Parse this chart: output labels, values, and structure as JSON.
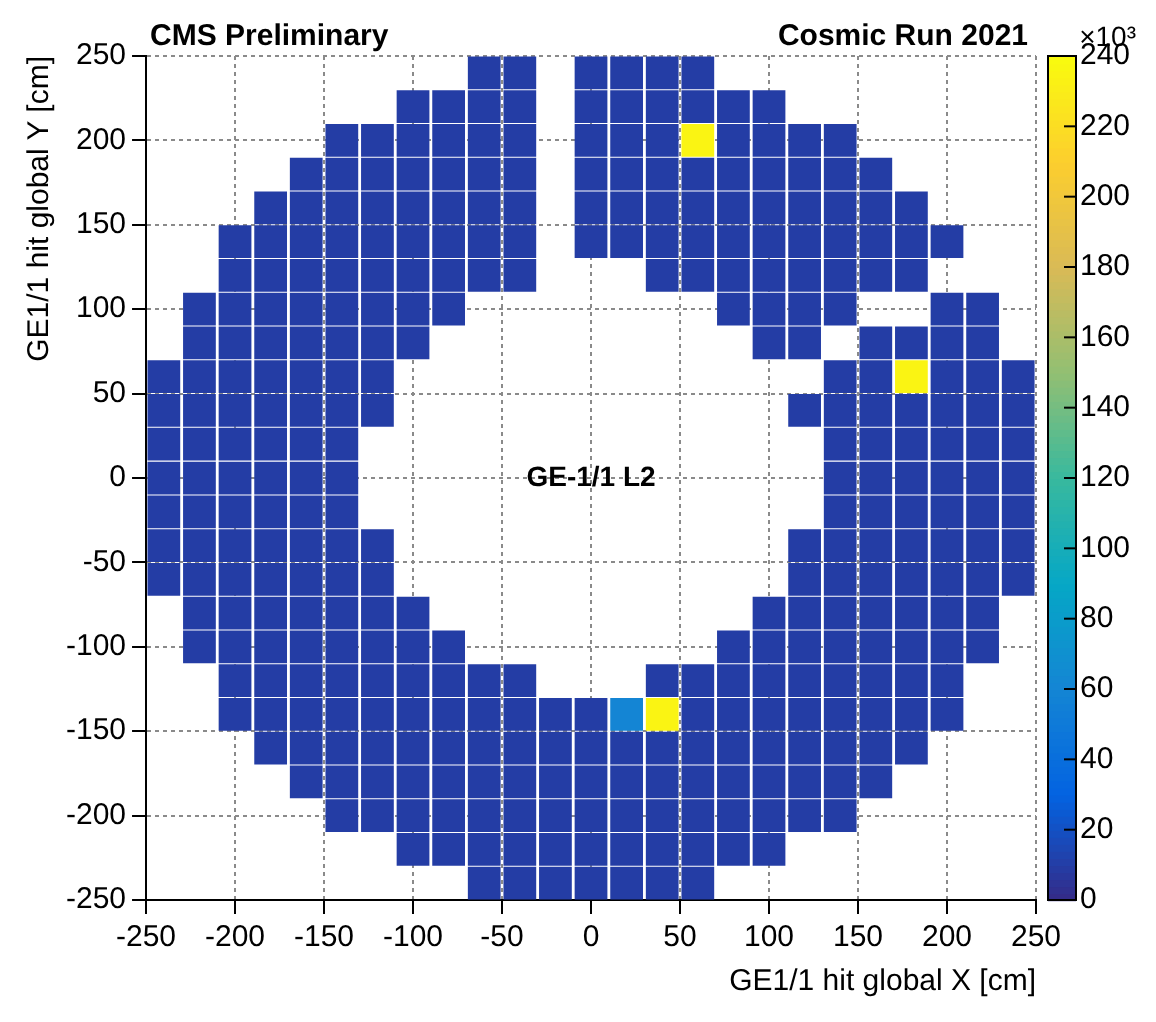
{
  "chart_data": {
    "type": "scatter",
    "title": "CMS Preliminary",
    "subtitle": "Cosmic Run 2021",
    "xlabel": "GE1/1 hit global X [cm]",
    "ylabel": "GE1/1 hit global Y [cm]",
    "clabel": "×10³",
    "annotations": [
      "GE-1/1 L2"
    ],
    "marker": "square",
    "grid": true,
    "legend": false,
    "xlim": [
      -250,
      250
    ],
    "xticks": [
      -250,
      -200,
      -150,
      -100,
      -50,
      0,
      50,
      100,
      150,
      200,
      250
    ],
    "ylim": [
      -250,
      250
    ],
    "yticks": [
      -250,
      -200,
      -150,
      -100,
      -50,
      0,
      50,
      100,
      150,
      200,
      250
    ],
    "clim": [
      0,
      240
    ],
    "cticks": [
      0,
      20,
      40,
      60,
      80,
      100,
      120,
      140,
      160,
      180,
      200,
      220,
      240
    ],
    "x": [
      -60,
      -40,
      0,
      20,
      40,
      60,
      -100,
      -80,
      -60,
      -40,
      0,
      20,
      40,
      60,
      80,
      100,
      -140,
      -120,
      -100,
      -80,
      -60,
      -40,
      0,
      20,
      40,
      60,
      80,
      100,
      120,
      140,
      -160,
      -140,
      -120,
      -100,
      -80,
      -60,
      -40,
      0,
      20,
      40,
      60,
      80,
      100,
      120,
      140,
      160,
      -180,
      -160,
      -140,
      -120,
      -100,
      -80,
      -60,
      -40,
      0,
      20,
      40,
      60,
      80,
      100,
      120,
      140,
      160,
      180,
      -200,
      -180,
      -160,
      -140,
      -120,
      -100,
      -80,
      -60,
      -40,
      0,
      20,
      40,
      60,
      80,
      100,
      120,
      140,
      160,
      180,
      200,
      -200,
      -180,
      -160,
      -140,
      -120,
      -100,
      -80,
      -60,
      -40,
      40,
      60,
      80,
      100,
      120,
      140,
      160,
      180,
      -220,
      -200,
      -180,
      -160,
      -140,
      -120,
      -100,
      -80,
      80,
      100,
      120,
      140,
      200,
      220,
      -220,
      -200,
      -180,
      -160,
      -140,
      -120,
      -100,
      100,
      120,
      160,
      180,
      200,
      220,
      -240,
      -220,
      -200,
      -180,
      -160,
      -140,
      -120,
      140,
      160,
      180,
      200,
      220,
      240,
      -240,
      -220,
      -200,
      -180,
      -160,
      -140,
      -120,
      120,
      140,
      160,
      180,
      200,
      220,
      240,
      -240,
      -220,
      -200,
      -180,
      -160,
      -140,
      140,
      160,
      180,
      200,
      220,
      240,
      -240,
      -220,
      -200,
      -180,
      -160,
      -140,
      140,
      160,
      180,
      200,
      220,
      240,
      -240,
      -220,
      -200,
      -180,
      -160,
      -140,
      140,
      160,
      180,
      200,
      220,
      240,
      -240,
      -220,
      -200,
      -180,
      -160,
      -140,
      -120,
      120,
      140,
      160,
      180,
      200,
      220,
      240,
      -240,
      -220,
      -200,
      -180,
      -160,
      -140,
      -120,
      120,
      140,
      160,
      180,
      200,
      220,
      240,
      -220,
      -200,
      -180,
      -160,
      -140,
      -120,
      -100,
      100,
      120,
      140,
      160,
      180,
      200,
      220,
      -220,
      -200,
      -180,
      -160,
      -140,
      -120,
      -100,
      -80,
      80,
      100,
      120,
      140,
      160,
      180,
      200,
      220,
      -200,
      -180,
      -160,
      -140,
      -120,
      -100,
      -80,
      -60,
      -40,
      40,
      60,
      80,
      100,
      120,
      140,
      160,
      180,
      200,
      -200,
      -180,
      -160,
      -140,
      -120,
      -100,
      -80,
      -60,
      -40,
      -20,
      0,
      20,
      40,
      60,
      80,
      100,
      120,
      140,
      160,
      180,
      200,
      -180,
      -160,
      -140,
      -120,
      -100,
      -80,
      -60,
      -40,
      -20,
      0,
      20,
      40,
      60,
      80,
      100,
      120,
      140,
      160,
      180,
      -160,
      -140,
      -120,
      -100,
      -80,
      -60,
      -40,
      -20,
      0,
      20,
      40,
      60,
      80,
      100,
      120,
      140,
      160,
      -140,
      -120,
      -100,
      -80,
      -60,
      -40,
      -20,
      0,
      20,
      40,
      60,
      80,
      100,
      120,
      140,
      -100,
      -80,
      -60,
      -40,
      -20,
      0,
      20,
      40,
      60,
      80,
      100,
      -60,
      -40,
      -20,
      0,
      20,
      40,
      60
    ],
    "values": [
      240,
      240,
      240,
      240,
      240,
      240,
      220,
      220,
      220,
      220,
      220,
      220,
      220,
      220,
      220,
      220,
      200,
      200,
      200,
      200,
      200,
      200,
      200,
      200,
      200,
      200,
      200,
      200,
      200,
      200,
      180,
      180,
      180,
      180,
      180,
      180,
      180,
      180,
      180,
      180,
      180,
      180,
      180,
      180,
      180,
      180,
      160,
      160,
      160,
      160,
      160,
      160,
      160,
      160,
      160,
      160,
      160,
      160,
      160,
      160,
      160,
      160,
      160,
      160,
      140,
      140,
      140,
      140,
      140,
      140,
      140,
      140,
      140,
      140,
      140,
      140,
      140,
      140,
      140,
      140,
      140,
      140,
      140,
      140,
      120,
      120,
      120,
      120,
      120,
      120,
      120,
      120,
      120,
      120,
      120,
      120,
      120,
      120,
      120,
      120,
      120,
      100,
      100,
      100,
      100,
      100,
      100,
      100,
      100,
      100,
      100,
      100,
      100,
      100,
      100,
      80,
      80,
      80,
      80,
      80,
      80,
      80,
      80,
      80,
      80,
      80,
      80,
      80,
      60,
      60,
      60,
      60,
      60,
      60,
      60,
      60,
      60,
      60,
      60,
      60,
      60,
      40,
      40,
      40,
      40,
      40,
      40,
      40,
      40,
      40,
      40,
      40,
      40,
      40,
      40,
      20,
      20,
      20,
      20,
      20,
      20,
      20,
      20,
      20,
      20,
      20,
      20,
      0,
      0,
      0,
      0,
      0,
      0,
      0,
      0,
      0,
      0,
      0,
      0,
      -20,
      -20,
      -20,
      -20,
      -20,
      -20,
      -20,
      -20,
      -20,
      -20,
      -20,
      -20,
      -40,
      -40,
      -40,
      -40,
      -40,
      -40,
      -40,
      -40,
      -40,
      -40,
      -40,
      -40,
      -40,
      -40,
      -60,
      -60,
      -60,
      -60,
      -60,
      -60,
      -60,
      -60,
      -60,
      -60,
      -60,
      -60,
      -60,
      -60,
      -80,
      -80,
      -80,
      -80,
      -80,
      -80,
      -80,
      -80,
      -80,
      -80,
      -80,
      -80,
      -80,
      -80,
      -100,
      -100,
      -100,
      -100,
      -100,
      -100,
      -100,
      -100,
      -100,
      -100,
      -100,
      -100,
      -100,
      -100,
      -100,
      -100,
      -120,
      -120,
      -120,
      -120,
      -120,
      -120,
      -120,
      -120,
      -120,
      -120,
      -120,
      -120,
      -120,
      -120,
      -120,
      -120,
      -120,
      -120,
      -140,
      -140,
      -140,
      -140,
      -140,
      -140,
      -140,
      -140,
      -140,
      -140,
      -140,
      -140,
      -140,
      -140,
      -140,
      -140,
      -140,
      -140,
      -140,
      -140,
      -140,
      -160,
      -160,
      -160,
      -160,
      -160,
      -160,
      -160,
      -160,
      -160,
      -160,
      -160,
      -160,
      -160,
      -160,
      -160,
      -160,
      -160,
      -160,
      -160,
      -180,
      -180,
      -180,
      -180,
      -180,
      -180,
      -180,
      -180,
      -180,
      -180,
      -180,
      -180,
      -180,
      -180,
      -180,
      -180,
      -180,
      -200,
      -200,
      -200,
      -200,
      -200,
      -200,
      -200,
      -200,
      -200,
      -200,
      -200,
      -200,
      -200,
      -200,
      -200,
      -220,
      -220,
      -220,
      -220,
      -220,
      -220,
      -220,
      -220,
      -220,
      -220,
      -220,
      -240,
      -240,
      -240,
      -240,
      -240,
      -240,
      -240
    ],
    "cvalues": [
      10,
      10,
      10,
      10,
      10,
      10,
      10,
      10,
      10,
      10,
      10,
      10,
      10,
      10,
      10,
      10,
      10,
      10,
      10,
      10,
      10,
      10,
      10,
      10,
      10,
      235,
      10,
      10,
      10,
      10,
      10,
      10,
      10,
      10,
      10,
      10,
      10,
      10,
      10,
      10,
      10,
      10,
      10,
      10,
      10,
      10,
      10,
      10,
      10,
      10,
      10,
      10,
      10,
      10,
      10,
      10,
      10,
      10,
      10,
      10,
      10,
      10,
      10,
      10,
      10,
      10,
      10,
      10,
      10,
      10,
      10,
      10,
      10,
      10,
      10,
      10,
      10,
      10,
      10,
      10,
      10,
      10,
      10,
      10,
      10,
      10,
      10,
      10,
      10,
      10,
      10,
      10,
      10,
      10,
      10,
      10,
      10,
      10,
      10,
      10,
      10,
      10,
      10,
      10,
      10,
      10,
      10,
      10,
      10,
      10,
      10,
      10,
      10,
      10,
      10,
      10,
      10,
      10,
      10,
      10,
      10,
      10,
      10,
      10,
      10,
      10,
      10,
      10,
      10,
      10,
      10,
      10,
      10,
      10,
      10,
      10,
      10,
      235,
      10,
      10,
      10,
      10,
      10,
      10,
      10,
      10,
      10,
      10,
      10,
      10,
      10,
      10,
      10,
      10,
      10,
      10,
      10,
      10,
      10,
      10,
      10,
      10,
      10,
      10,
      10,
      10,
      10,
      10,
      10,
      10,
      10,
      10,
      10,
      10,
      10,
      10,
      10,
      10,
      10,
      10,
      10,
      10,
      10,
      10,
      10,
      10,
      10,
      10,
      10,
      10,
      10,
      10,
      10,
      10,
      10,
      10,
      10,
      10,
      10,
      10,
      10,
      10,
      10,
      10,
      10,
      10,
      10,
      10,
      10,
      10,
      10,
      10,
      10,
      10,
      10,
      10,
      10,
      10,
      10,
      10,
      10,
      10,
      10,
      10,
      10,
      10,
      10,
      10,
      10,
      10,
      10,
      10,
      10,
      10,
      10,
      10,
      10,
      10,
      10,
      10,
      10,
      10,
      10,
      10,
      10,
      10,
      10,
      10,
      10,
      10,
      10,
      10,
      10,
      10,
      10,
      10,
      10,
      10,
      10,
      10,
      10,
      10,
      10,
      10,
      10,
      10,
      10,
      10,
      10,
      10,
      10,
      10,
      10,
      10,
      10,
      10,
      10,
      10,
      60,
      235,
      10,
      10,
      10,
      10,
      10,
      10,
      10,
      10,
      10,
      10,
      10,
      10,
      10,
      10,
      10,
      10,
      10,
      10,
      10,
      10,
      10,
      10,
      10,
      10,
      10,
      10,
      10,
      10,
      10,
      10,
      10,
      10,
      10,
      10,
      10,
      10,
      10,
      10,
      10,
      10,
      10,
      10,
      10,
      10,
      10,
      10,
      10,
      10,
      10,
      10,
      10,
      10,
      10,
      10,
      10,
      10,
      10,
      10,
      10,
      10,
      10,
      10,
      10,
      10,
      10,
      10,
      10,
      10,
      10,
      10,
      10,
      10,
      10,
      10,
      10,
      10,
      10
    ]
  }
}
